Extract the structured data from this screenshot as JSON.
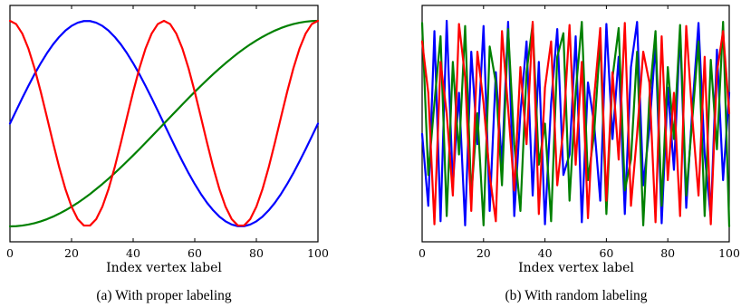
{
  "chart_data": [
    {
      "type": "line",
      "caption": "(a) With proper labeling",
      "xlabel": "Index vertex label",
      "ylabel": "",
      "xlim": [
        0,
        100
      ],
      "ylim": [
        -1.15,
        1.15
      ],
      "y_ticks_visible": false,
      "x_ticks": [
        0,
        20,
        40,
        60,
        80,
        100
      ],
      "grid": false,
      "legend": "none",
      "x": [
        0,
        2,
        4,
        6,
        8,
        10,
        12,
        14,
        16,
        18,
        20,
        22,
        24,
        26,
        28,
        30,
        32,
        34,
        36,
        38,
        40,
        42,
        44,
        46,
        48,
        50,
        52,
        54,
        56,
        58,
        60,
        62,
        64,
        66,
        68,
        70,
        72,
        74,
        76,
        78,
        80,
        82,
        84,
        86,
        88,
        90,
        92,
        94,
        96,
        98,
        100
      ],
      "series": [
        {
          "color": "#0000ff",
          "values": [
            0.0,
            0.125,
            0.249,
            0.368,
            0.482,
            0.588,
            0.685,
            0.771,
            0.844,
            0.905,
            0.951,
            0.982,
            0.998,
            0.998,
            0.982,
            0.951,
            0.905,
            0.844,
            0.771,
            0.685,
            0.588,
            0.482,
            0.368,
            0.249,
            0.125,
            0.0,
            -0.125,
            -0.249,
            -0.368,
            -0.482,
            -0.588,
            -0.685,
            -0.771,
            -0.844,
            -0.905,
            -0.951,
            -0.982,
            -0.998,
            -0.998,
            -0.982,
            -0.951,
            -0.905,
            -0.844,
            -0.771,
            -0.685,
            -0.588,
            -0.482,
            -0.368,
            -0.249,
            -0.125,
            0.0
          ]
        },
        {
          "color": "#008000",
          "values": [
            -1.0,
            -0.998,
            -0.992,
            -0.982,
            -0.969,
            -0.951,
            -0.93,
            -0.905,
            -0.876,
            -0.844,
            -0.809,
            -0.771,
            -0.729,
            -0.685,
            -0.637,
            -0.588,
            -0.536,
            -0.482,
            -0.426,
            -0.368,
            -0.309,
            -0.249,
            -0.187,
            -0.125,
            -0.063,
            0.0,
            0.063,
            0.125,
            0.187,
            0.249,
            0.309,
            0.368,
            0.426,
            0.482,
            0.536,
            0.588,
            0.637,
            0.685,
            0.729,
            0.771,
            0.809,
            0.844,
            0.876,
            0.905,
            0.93,
            0.951,
            0.969,
            0.982,
            0.992,
            0.998,
            1.0
          ]
        },
        {
          "color": "#ff0000",
          "values": [
            1.0,
            0.969,
            0.876,
            0.729,
            0.536,
            0.309,
            0.063,
            -0.187,
            -0.426,
            -0.637,
            -0.809,
            -0.93,
            -0.992,
            -0.992,
            -0.93,
            -0.809,
            -0.637,
            -0.426,
            -0.187,
            0.063,
            0.309,
            0.536,
            0.729,
            0.876,
            0.969,
            1.0,
            0.969,
            0.876,
            0.729,
            0.536,
            0.309,
            0.063,
            -0.187,
            -0.426,
            -0.637,
            -0.809,
            -0.93,
            -0.992,
            -0.992,
            -0.93,
            -0.809,
            -0.637,
            -0.426,
            -0.187,
            0.063,
            0.309,
            0.536,
            0.729,
            0.876,
            0.969,
            1.0
          ]
        }
      ]
    },
    {
      "type": "line",
      "caption": "(b) With random labeling",
      "xlabel": "Index vertex label",
      "ylabel": "",
      "xlim": [
        0,
        100
      ],
      "ylim": [
        -1.15,
        1.15
      ],
      "y_ticks_visible": false,
      "x_ticks": [
        0,
        20,
        40,
        60,
        80,
        100
      ],
      "grid": false,
      "legend": "none",
      "x": [
        0,
        2,
        4,
        6,
        8,
        10,
        12,
        14,
        16,
        18,
        20,
        22,
        24,
        26,
        28,
        30,
        32,
        34,
        36,
        38,
        40,
        42,
        44,
        46,
        48,
        50,
        52,
        54,
        56,
        58,
        60,
        62,
        64,
        66,
        68,
        70,
        72,
        74,
        76,
        78,
        80,
        82,
        84,
        86,
        88,
        90,
        92,
        94,
        96,
        98,
        100
      ],
      "series": [
        {
          "color": "#0000ff",
          "values": [
            -0.1,
            -0.8,
            0.9,
            -0.95,
            1.0,
            -0.6,
            0.3,
            -0.99,
            0.7,
            -0.2,
            0.95,
            -0.85,
            0.5,
            -0.4,
            0.99,
            -0.9,
            0.1,
            0.8,
            -0.7,
            0.6,
            -0.98,
            0.2,
            0.92,
            -0.5,
            -0.3,
            0.85,
            -0.96,
            0.4,
            0.0,
            -0.75,
            0.97,
            -0.15,
            0.65,
            -0.88,
            0.55,
            0.99,
            -0.6,
            -0.05,
            0.78,
            -0.97,
            0.35,
            -0.45,
            0.9,
            -0.82,
            0.15,
            0.98,
            -0.3,
            -0.92,
            0.72,
            -0.55,
            0.3
          ]
        },
        {
          "color": "#008000",
          "values": [
            0.98,
            -0.5,
            0.2,
            0.85,
            -0.9,
            0.6,
            -0.3,
            0.95,
            -0.7,
            0.1,
            -0.99,
            0.75,
            0.4,
            -0.6,
            0.92,
            -0.2,
            -0.85,
            0.5,
            0.97,
            -0.4,
            0.0,
            -0.95,
            0.65,
            0.88,
            -0.75,
            0.3,
            0.99,
            -0.55,
            -0.1,
            0.82,
            -0.88,
            0.45,
            0.93,
            -0.65,
            -0.35,
            0.7,
            -0.99,
            0.25,
            0.9,
            -0.8,
            0.55,
            -0.15,
            0.96,
            -0.7,
            0.05,
            0.8,
            -0.9,
            0.62,
            -0.25,
            0.99,
            -1.0
          ]
        },
        {
          "color": "#ff0000",
          "values": [
            0.8,
            0.3,
            -0.98,
            0.6,
            0.1,
            -0.7,
            0.97,
            0.45,
            -0.85,
            0.7,
            0.2,
            -0.5,
            -0.95,
            0.9,
            0.15,
            -0.65,
            0.55,
            -0.2,
            0.99,
            -0.88,
            0.35,
            0.8,
            -0.6,
            -0.05,
            0.96,
            -0.4,
            0.6,
            -0.92,
            0.25,
            0.93,
            -0.75,
            0.5,
            -0.35,
            0.98,
            -0.8,
            -0.1,
            0.7,
            0.4,
            -0.96,
            0.85,
            -0.55,
            0.3,
            -0.9,
            0.95,
            0.05,
            -0.7,
            0.65,
            -0.98,
            0.5,
            0.9,
            0.1
          ]
        }
      ]
    }
  ]
}
